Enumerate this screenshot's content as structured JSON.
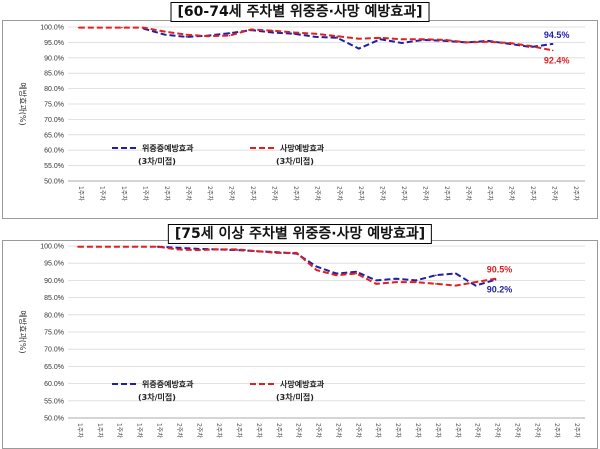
{
  "chart_data": [
    {
      "type": "line",
      "title": "[60-74세 주차별 위중증·사망 예방효과]",
      "ylabel": "예방효과(%)",
      "ylim": [
        50,
        100
      ],
      "yticks": [
        "50.0%",
        "55.0%",
        "60.0%",
        "65.0%",
        "70.0%",
        "75.0%",
        "80.0%",
        "85.0%",
        "90.0%",
        "95.0%",
        "100.0%"
      ],
      "categories": [
        "1주차",
        "1주차",
        "1주차",
        "1주차",
        "2주차",
        "2주차",
        "2주차",
        "2주차",
        "2주차",
        "2주차",
        "2주차",
        "2주차",
        "2주차",
        "2주차",
        "2주차",
        "2주차",
        "2주차",
        "2주차",
        "2주차",
        "2주차",
        "2주차",
        "2주차",
        "2주차",
        "2주차"
      ],
      "grid": true,
      "legend": [
        {
          "name": "위중증예방효과",
          "sub": "(3차/미접)"
        },
        {
          "name": "사망예방효과",
          "sub": "(3차/미접)"
        }
      ],
      "series": [
        {
          "name": "위중증예방효과",
          "color": "#1f1fa8",
          "values": [
            null,
            null,
            null,
            99.5,
            97.5,
            96.8,
            97.2,
            98.0,
            99.0,
            98.2,
            97.8,
            96.8,
            96.5,
            93.0,
            96.0,
            94.8,
            95.8,
            95.5,
            95.0,
            95.5,
            94.5,
            93.5,
            94.5,
            null
          ],
          "end_label": "94.5%"
        },
        {
          "name": "사망예방효과",
          "color": "#e02020",
          "values": [
            99.8,
            99.8,
            99.8,
            99.8,
            98.5,
            97.5,
            97.0,
            97.2,
            99.2,
            98.8,
            98.2,
            97.8,
            97.0,
            96.2,
            96.5,
            96.0,
            96.0,
            95.8,
            95.0,
            95.2,
            94.8,
            93.8,
            92.4,
            null
          ],
          "end_label": "92.4%"
        }
      ]
    },
    {
      "type": "line",
      "title": "[75세 이상 주차별 위중증·사망 예방효과]",
      "ylabel": "예방효과(%)",
      "ylim": [
        50,
        100
      ],
      "yticks": [
        "50.0%",
        "55.0%",
        "60.0%",
        "65.0%",
        "70.0%",
        "75.0%",
        "80.0%",
        "85.0%",
        "90.0%",
        "95.0%",
        "100.0%"
      ],
      "categories": [
        "1주차",
        "1주차",
        "1주차",
        "1주차",
        "1주차",
        "2주차",
        "2주차",
        "2주차",
        "2주차",
        "2주차",
        "2주차",
        "2주차",
        "2주차",
        "2주차",
        "2주차",
        "2주차",
        "2주차",
        "2주차",
        "2주차",
        "2주차",
        "2주차",
        "2주차",
        "2주차",
        "2주차",
        "2주차",
        "2주차"
      ],
      "grid": true,
      "legend": [
        {
          "name": "위중증예방효과",
          "sub": "(3차/미접)"
        },
        {
          "name": "사망예방효과",
          "sub": "(3차/미접)"
        }
      ],
      "series": [
        {
          "name": "위중증예방효과",
          "color": "#1f1fa8",
          "values": [
            null,
            null,
            null,
            null,
            99.8,
            99.5,
            99.2,
            99.0,
            98.8,
            98.5,
            98.2,
            97.8,
            94.0,
            92.0,
            92.5,
            90.0,
            90.5,
            90.0,
            91.5,
            92.0,
            88.5,
            90.2,
            null,
            null,
            null,
            null
          ],
          "end_label": "90.2%"
        },
        {
          "name": "사망예방효과",
          "color": "#e02020",
          "values": [
            99.8,
            99.8,
            99.8,
            99.8,
            99.8,
            99.0,
            98.8,
            99.0,
            99.0,
            98.5,
            98.0,
            98.0,
            93.0,
            91.5,
            92.0,
            89.0,
            89.5,
            89.5,
            89.0,
            88.5,
            89.5,
            90.5,
            null,
            null,
            null,
            null
          ],
          "end_label": "90.5%"
        }
      ]
    }
  ]
}
